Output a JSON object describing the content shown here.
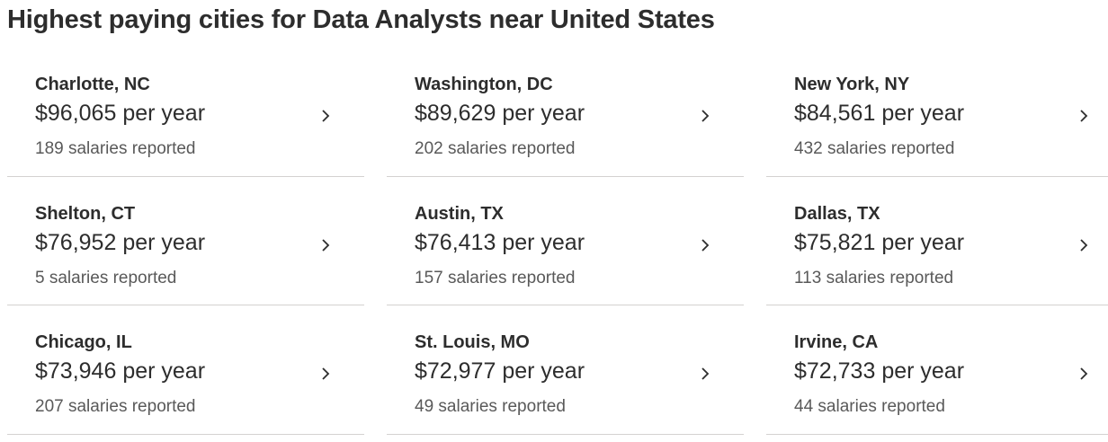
{
  "header": {
    "title": "Highest paying cities for Data Analysts near United States"
  },
  "cities": [
    {
      "city": "Charlotte, NC",
      "salary": "$96,065 per year",
      "reported": "189 salaries reported"
    },
    {
      "city": "Washington, DC",
      "salary": "$89,629 per year",
      "reported": "202 salaries reported"
    },
    {
      "city": "New York, NY",
      "salary": "$84,561 per year",
      "reported": "432 salaries reported"
    },
    {
      "city": "Shelton, CT",
      "salary": "$76,952 per year",
      "reported": "5 salaries reported"
    },
    {
      "city": "Austin, TX",
      "salary": "$76,413 per year",
      "reported": "157 salaries reported"
    },
    {
      "city": "Dallas, TX",
      "salary": "$75,821 per year",
      "reported": "113 salaries reported"
    },
    {
      "city": "Chicago, IL",
      "salary": "$73,946 per year",
      "reported": "207 salaries reported"
    },
    {
      "city": "St. Louis, MO",
      "salary": "$72,977 per year",
      "reported": "49 salaries reported"
    },
    {
      "city": "Irvine, CA",
      "salary": "$72,733 per year",
      "reported": "44 salaries reported"
    }
  ],
  "icons": {
    "chevron": "chevron-right-icon"
  },
  "colors": {
    "text": "#2d2d2d",
    "secondary_text": "#595959",
    "divider": "#d4d2d0"
  }
}
